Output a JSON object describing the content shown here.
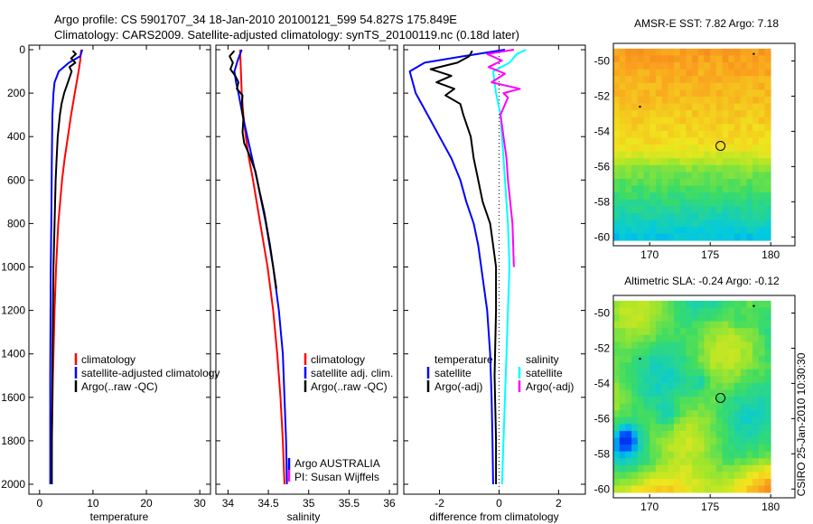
{
  "title_line1": "Argo profile: CS 5901707_34 18-Jan-2010 20100121_599 54.827S 175.849E",
  "title_line2": "Climatology: CARS2009. Satellite-adjusted climatology: synTS_20100119.nc (0.18d later)",
  "credit": "CSIRO 25-Jan-2010 10:30:30",
  "colors": {
    "red": "#ff0000",
    "blue": "#0000ff",
    "black": "#000000",
    "cyan": "#00ffff",
    "magenta": "#ff00ff"
  },
  "chart_data": [
    {
      "type": "line",
      "name": "temperature",
      "xlabel": "temperature",
      "ylabel": "",
      "xlim": [
        -2,
        32
      ],
      "ylim": [
        2050,
        0
      ],
      "xticks": [
        0,
        10,
        20,
        30
      ],
      "yticks": [
        0,
        200,
        400,
        600,
        800,
        1000,
        1200,
        1400,
        1600,
        1800,
        2000
      ],
      "legend": [
        "climatology",
        "satellite-adjusted climatology",
        "Argo(..raw -QC)"
      ],
      "series": [
        {
          "name": "climatology",
          "color": "red",
          "depth": [
            0,
            50,
            100,
            200,
            300,
            400,
            500,
            600,
            800,
            1000,
            1200,
            1500,
            1800,
            2000
          ],
          "values": [
            7.8,
            7.6,
            7.3,
            6.6,
            5.9,
            5.3,
            4.7,
            4.2,
            3.5,
            3.1,
            2.8,
            2.5,
            2.3,
            2.2
          ]
        },
        {
          "name": "satellite-adjusted climatology",
          "color": "blue",
          "depth": [
            0,
            30,
            60,
            100,
            150,
            200,
            300,
            500,
            800,
            1000,
            1500,
            2000
          ],
          "values": [
            8.0,
            7.6,
            5.5,
            3.6,
            2.8,
            2.6,
            2.4,
            2.3,
            2.2,
            2.1,
            2.0,
            2.0
          ]
        },
        {
          "name": "Argo(..raw -QC)",
          "color": "black",
          "depth": [
            5,
            20,
            40,
            60,
            80,
            100,
            150,
            200,
            250,
            300,
            400,
            500,
            600,
            800,
            1000,
            1200,
            1500,
            1800,
            2000
          ],
          "values": [
            6.2,
            6.8,
            5.9,
            6.7,
            5.6,
            6.0,
            5.3,
            4.6,
            4.1,
            3.8,
            3.4,
            3.2,
            3.0,
            2.8,
            2.6,
            2.5,
            2.4,
            2.3,
            2.3
          ]
        }
      ]
    },
    {
      "type": "line",
      "name": "salinity",
      "xlabel": "salinity",
      "ylabel": "",
      "xlim": [
        33.85,
        36.1
      ],
      "ylim": [
        2050,
        0
      ],
      "xticks": [
        34,
        34.5,
        35,
        35.5,
        36
      ],
      "xticklabels": [
        "34",
        "34.5",
        "35",
        "35.5",
        "36"
      ],
      "legend": [
        "climatology",
        "satellite adj. clim.",
        "Argo(..raw -QC)"
      ],
      "annotation": [
        "Argo AUSTRALIA",
        "PI: Susan Wijffels"
      ],
      "series": [
        {
          "name": "climatology",
          "color": "red",
          "depth": [
            0,
            100,
            200,
            300,
            400,
            500,
            600,
            800,
            1000,
            1200,
            1400,
            1600,
            1800,
            2000
          ],
          "values": [
            34.15,
            34.16,
            34.17,
            34.19,
            34.22,
            34.26,
            34.31,
            34.4,
            34.49,
            34.56,
            34.61,
            34.65,
            34.68,
            34.7
          ]
        },
        {
          "name": "satellite adj. clim.",
          "color": "blue",
          "depth": [
            0,
            50,
            100,
            150,
            200,
            300,
            400,
            500,
            600,
            800,
            1000,
            1200,
            1400,
            1600,
            1800,
            2000
          ],
          "values": [
            34.17,
            34.12,
            34.08,
            34.1,
            34.13,
            34.18,
            34.24,
            34.3,
            34.36,
            34.47,
            34.56,
            34.63,
            34.68,
            34.7,
            34.72,
            34.73
          ]
        },
        {
          "name": "Argo(..raw -QC)",
          "color": "black",
          "depth": [
            5,
            30,
            60,
            90,
            120,
            150,
            180,
            210,
            260,
            320,
            380,
            430,
            480,
            560,
            650,
            750,
            900,
            1100
          ],
          "values": [
            34.08,
            34.02,
            34.06,
            34.03,
            34.09,
            34.13,
            34.11,
            34.18,
            34.17,
            34.19,
            34.18,
            34.2,
            34.26,
            34.34,
            34.39,
            34.45,
            34.52,
            34.6
          ]
        }
      ]
    },
    {
      "type": "line",
      "name": "difference",
      "xlabel": "difference from climatology",
      "ylabel": "",
      "xlim": [
        -3.2,
        2.9
      ],
      "ylim": [
        2050,
        0
      ],
      "xticks": [
        -2,
        0,
        2
      ],
      "xticklabels": [
        "-2",
        "0",
        "2"
      ],
      "legend_left": [
        "temperature",
        "satellite",
        "Argo(-adj)"
      ],
      "legend_right": [
        "salinity",
        "satellite",
        "Argo(-adj)"
      ],
      "series": [
        {
          "name": "temperature satellite",
          "color": "blue",
          "depth": [
            0,
            30,
            60,
            100,
            150,
            200,
            300,
            400,
            500,
            600,
            700,
            800,
            900,
            1000,
            1200,
            1400,
            1600,
            1800,
            2000
          ],
          "values": [
            0.2,
            -1.2,
            -2.5,
            -3.0,
            -2.9,
            -2.8,
            -2.4,
            -2.0,
            -1.6,
            -1.3,
            -1.1,
            -0.85,
            -0.7,
            -0.6,
            -0.4,
            -0.3,
            -0.25,
            -0.22,
            -0.2
          ]
        },
        {
          "name": "temperature Argo(-adj)",
          "color": "black",
          "depth": [
            5,
            30,
            60,
            90,
            120,
            150,
            180,
            210,
            250,
            300,
            400,
            500,
            600,
            700,
            800,
            900,
            1000,
            1200,
            1500,
            1800,
            2000
          ],
          "values": [
            -0.9,
            -1.0,
            -1.4,
            -2.3,
            -1.6,
            -2.1,
            -1.5,
            -1.8,
            -1.3,
            -1.2,
            -0.95,
            -0.85,
            -0.7,
            -0.55,
            -0.3,
            -0.2,
            -0.1,
            -0.1,
            -0.15,
            -0.1,
            -0.1
          ]
        },
        {
          "name": "salinity satellite",
          "color": "cyan",
          "depth": [
            0,
            20,
            60,
            100,
            150,
            200,
            300,
            400,
            500,
            600,
            800,
            1000,
            1200,
            1400,
            1600,
            1800,
            2000
          ],
          "values": [
            0.9,
            0.6,
            0.35,
            -0.2,
            -0.15,
            -0.1,
            0.05,
            0.1,
            0.15,
            0.2,
            0.3,
            0.35,
            0.3,
            0.25,
            0.2,
            0.15,
            0.1
          ]
        },
        {
          "name": "salinity Argo(-adj)",
          "color": "magenta",
          "depth": [
            0,
            20,
            50,
            80,
            110,
            150,
            180,
            200,
            220,
            300,
            400,
            500,
            600,
            800,
            1000
          ],
          "values": [
            0.5,
            -0.4,
            0.1,
            -0.35,
            0.2,
            -0.25,
            0.7,
            0.15,
            0.3,
            0.05,
            0.15,
            0.25,
            0.3,
            0.45,
            0.5
          ]
        }
      ]
    },
    {
      "type": "heatmap",
      "name": "sst_map",
      "title": "AMSR-E SST: 7.82 Argo: 7.18",
      "xlim": [
        167,
        182
      ],
      "ylim": [
        -60.5,
        -49
      ],
      "xticks": [
        170,
        175,
        180
      ],
      "yticks": [
        -50,
        -52,
        -54,
        -56,
        -58,
        -60
      ],
      "argo_position": [
        175.849,
        -54.827
      ]
    },
    {
      "type": "heatmap",
      "name": "sla_map",
      "title": "Altimetric SLA: -0.24 Argo: -0.12",
      "xlim": [
        167,
        182
      ],
      "ylim": [
        -60.5,
        -49
      ],
      "xticks": [
        170,
        175,
        180
      ],
      "yticks": [
        -50,
        -52,
        -54,
        -56,
        -58,
        -60
      ],
      "argo_position": [
        175.849,
        -54.827
      ]
    }
  ]
}
